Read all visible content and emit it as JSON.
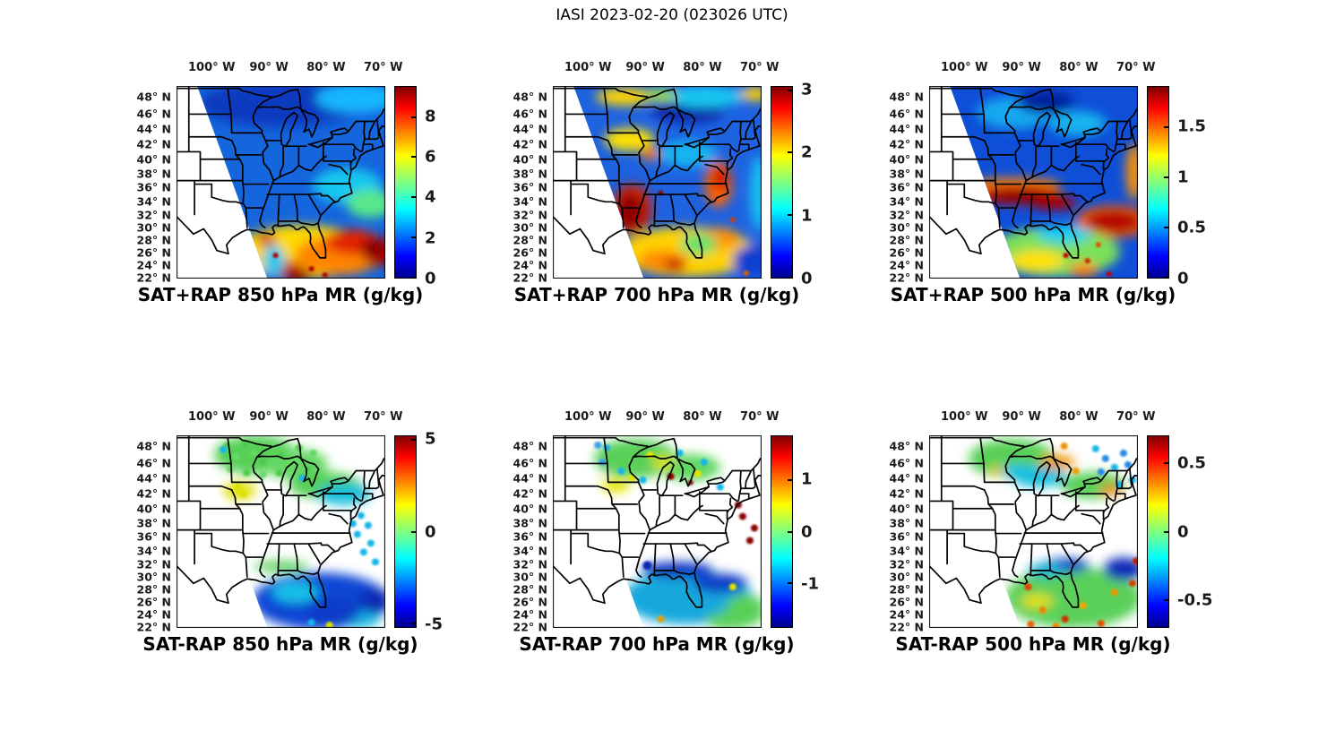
{
  "figure_title": "IASI 2023-02-20 (023026 UTC)",
  "instrument": "IASI",
  "date": "2023-02-20",
  "time_utc": "023026",
  "chart_data": [
    {
      "type": "heatmap",
      "id": "sat-plus-rap-850",
      "title": "SAT+RAP 850 hPa MR (g/kg)",
      "quantity": "SAT+RAP mixing ratio",
      "pressure_level_hPa": 850,
      "units": "g/kg",
      "x_axis": {
        "label": "longitude",
        "tick_labels": [
          "100° W",
          "90° W",
          "80° W",
          "70° W"
        ],
        "tick_values_deg_east": [
          -100,
          -90,
          -80,
          -70
        ]
      },
      "y_axis": {
        "label": "latitude",
        "tick_labels": [
          "48° N",
          "46° N",
          "44° N",
          "42° N",
          "40° N",
          "38° N",
          "36° N",
          "34° N",
          "32° N",
          "30° N",
          "28° N",
          "26° N",
          "24° N",
          "22° N"
        ],
        "tick_values_deg_north": [
          48,
          46,
          44,
          42,
          40,
          38,
          36,
          34,
          32,
          30,
          28,
          26,
          24,
          22
        ]
      },
      "colorbar": {
        "colormap": "jet",
        "vmin": 0,
        "vmax": 9.5,
        "tick_values": [
          0,
          2,
          4,
          6,
          8
        ],
        "tick_labels": [
          "0",
          "2",
          "4",
          "6",
          "8"
        ]
      },
      "coverage": "IASI swath east of edge running ~102.5°W at 49°N to ~90.3°W at 22°N; white = no data (Texas, central Plains)",
      "regions": [
        {
          "area": "Upper Midwest / Great Lakes (40-49N)",
          "value_g_per_kg": "1-3 (blue)"
        },
        {
          "area": "Ohio Valley and Mid-Atlantic",
          "value_g_per_kg": "2-4 (blue-cyan)"
        },
        {
          "area": "Southeast coast and Florida",
          "value_g_per_kg": "4-7 (green-orange)"
        },
        {
          "area": "Gulf of Mexico and subtropical Atlantic (22-30N)",
          "value_g_per_kg": "6-9.5 (red, dark-red maxima)"
        }
      ]
    },
    {
      "type": "heatmap",
      "id": "sat-plus-rap-700",
      "title": "SAT+RAP 700 hPa MR (g/kg)",
      "quantity": "SAT+RAP mixing ratio",
      "pressure_level_hPa": 700,
      "units": "g/kg",
      "x_axis": {
        "label": "longitude",
        "tick_labels": [
          "100° W",
          "90° W",
          "80° W",
          "70° W"
        ],
        "tick_values_deg_east": [
          -100,
          -90,
          -80,
          -70
        ]
      },
      "y_axis": {
        "label": "latitude",
        "tick_labels": [
          "48° N",
          "46° N",
          "44° N",
          "42° N",
          "40° N",
          "38° N",
          "36° N",
          "34° N",
          "32° N",
          "30° N",
          "28° N",
          "26° N",
          "24° N",
          "22° N"
        ],
        "tick_values_deg_north": [
          48,
          46,
          44,
          42,
          40,
          38,
          36,
          34,
          32,
          30,
          28,
          26,
          24,
          22
        ]
      },
      "colorbar": {
        "colormap": "jet",
        "vmin": 0,
        "vmax": 3.05,
        "tick_values": [
          0,
          1,
          2,
          3
        ],
        "tick_labels": [
          "0",
          "1",
          "2",
          "3"
        ]
      },
      "coverage": "IASI swath east of edge running ~102.5°W at 49°N to ~90.3°W at 22°N; white = no data",
      "regions": [
        {
          "area": "Northern tier (44-49N)",
          "value_g_per_kg": "0.5-2 blue/cyan with yellow patches"
        },
        {
          "area": "Iowa-Illinois band",
          "value_g_per_kg": "~2 (yellow)"
        },
        {
          "area": "NE Texas / NW Louisiana (31-34N, 92-95W)",
          "value_g_per_kg": "~3 dark-red maximum"
        },
        {
          "area": "Carolina coast",
          "value_g_per_kg": "~2.5 (orange-red)"
        },
        {
          "area": "Gulf of Mexico and Florida",
          "value_g_per_kg": "1.5-2.5 yellow/orange"
        },
        {
          "area": "SE corner Atlantic",
          "value_g_per_kg": "~0.3 deep blue patch"
        }
      ]
    },
    {
      "type": "heatmap",
      "id": "sat-plus-rap-500",
      "title": "SAT+RAP 500 hPa MR (g/kg)",
      "quantity": "SAT+RAP mixing ratio",
      "pressure_level_hPa": 500,
      "units": "g/kg",
      "x_axis": {
        "label": "longitude",
        "tick_labels": [
          "100° W",
          "90° W",
          "80° W",
          "70° W"
        ],
        "tick_values_deg_east": [
          -100,
          -90,
          -80,
          -70
        ]
      },
      "y_axis": {
        "label": "latitude",
        "tick_labels": [
          "48° N",
          "46° N",
          "44° N",
          "42° N",
          "40° N",
          "38° N",
          "36° N",
          "34° N",
          "32° N",
          "30° N",
          "28° N",
          "26° N",
          "24° N",
          "22° N"
        ],
        "tick_values_deg_north": [
          48,
          46,
          44,
          42,
          40,
          38,
          36,
          34,
          32,
          30,
          28,
          26,
          24,
          22
        ]
      },
      "colorbar": {
        "colormap": "jet",
        "vmin": 0,
        "vmax": 1.9,
        "tick_values": [
          0,
          0.5,
          1,
          1.5
        ],
        "tick_labels": [
          "0",
          "0.5",
          "1",
          "1.5"
        ]
      },
      "coverage": "IASI swath east of edge running ~102.5°W at 49°N to ~90.3°W at 22°N; white = no data",
      "regions": [
        {
          "area": "Northern tier",
          "value_g_per_kg": "0.1-0.6 blue with cyan mottling"
        },
        {
          "area": "34-36N band from Oklahoma to Georgia",
          "value_g_per_kg": "~1.9 dark-red maximum"
        },
        {
          "area": "Western Atlantic 29-32N",
          "value_g_per_kg": "1.5-1.9 red band"
        },
        {
          "area": "Gulf of Mexico and Florida",
          "value_g_per_kg": "0.7-1.2 green/yellow, scattered red"
        },
        {
          "area": "Right edge near 70W, 36-40N",
          "value_g_per_kg": "~1.4 orange streak"
        }
      ]
    },
    {
      "type": "heatmap",
      "id": "sat-minus-rap-850",
      "title": "SAT-RAP 850 hPa MR (g/kg)",
      "quantity": "SAT-RAP mixing ratio difference",
      "pressure_level_hPa": 850,
      "units": "g/kg",
      "x_axis": {
        "label": "longitude",
        "tick_labels": [
          "100° W",
          "90° W",
          "80° W",
          "70° W"
        ],
        "tick_values_deg_east": [
          -100,
          -90,
          -80,
          -70
        ]
      },
      "y_axis": {
        "label": "latitude",
        "tick_labels": [
          "48° N",
          "46° N",
          "44° N",
          "42° N",
          "40° N",
          "38° N",
          "36° N",
          "34° N",
          "32° N",
          "30° N",
          "28° N",
          "26° N",
          "24° N",
          "22° N"
        ],
        "tick_values_deg_north": [
          48,
          46,
          44,
          42,
          40,
          38,
          36,
          34,
          32,
          30,
          28,
          26,
          24,
          22
        ]
      },
      "colorbar": {
        "colormap": "jet",
        "vmin": -5.2,
        "vmax": 5.2,
        "tick_values": [
          -5,
          0,
          5
        ],
        "tick_labels": [
          "-5",
          "0",
          "5"
        ]
      },
      "coverage": "sparse retrievals: scattered dots in north, contiguous field over Gulf/SE Atlantic; white = no data",
      "regions": [
        {
          "area": "Minnesota / Wisconsin / Dakotas dots",
          "value_g_per_kg": "0 to +0.5 (green)"
        },
        {
          "area": "Iowa-Nebraska patch",
          "value_g_per_kg": "+1 to +1.5 (yellow)"
        },
        {
          "area": "Ohio to Mid-Atlantic dots",
          "value_g_per_kg": "-0.5 to -1 (cyan)"
        },
        {
          "area": "Gulf of Mexico, Florida, SW Atlantic",
          "value_g_per_kg": "-2 to -4.5 (blue)"
        }
      ]
    },
    {
      "type": "heatmap",
      "id": "sat-minus-rap-700",
      "title": "SAT-RAP 700 hPa MR (g/kg)",
      "quantity": "SAT-RAP mixing ratio difference",
      "pressure_level_hPa": 700,
      "units": "g/kg",
      "x_axis": {
        "label": "longitude",
        "tick_labels": [
          "100° W",
          "90° W",
          "80° W",
          "70° W"
        ],
        "tick_values_deg_east": [
          -100,
          -90,
          -80,
          -70
        ]
      },
      "y_axis": {
        "label": "latitude",
        "tick_labels": [
          "48° N",
          "46° N",
          "44° N",
          "42° N",
          "40° N",
          "38° N",
          "36° N",
          "34° N",
          "32° N",
          "30° N",
          "28° N",
          "26° N",
          "24° N",
          "22° N"
        ],
        "tick_values_deg_north": [
          48,
          46,
          44,
          42,
          40,
          38,
          36,
          34,
          32,
          30,
          28,
          26,
          24,
          22
        ]
      },
      "colorbar": {
        "colormap": "jet",
        "vmin": -1.85,
        "vmax": 1.85,
        "tick_values": [
          -1,
          0,
          1
        ],
        "tick_labels": [
          "-1",
          "0",
          "1"
        ]
      },
      "coverage": "scattered dots in north, field over Gulf/SE; white = no data",
      "regions": [
        {
          "area": "Northern dots",
          "value_g_per_kg": "±0.3 green, few yellow +0.7"
        },
        {
          "area": "Isolated dots (Michigan, offshore New Jersey)",
          "value_g_per_kg": "+1.5 to +1.8 dark red"
        },
        {
          "area": "Inland 30-33N Louisiana to Georgia",
          "value_g_per_kg": "-1 to -1.5 dark blue"
        },
        {
          "area": "Gulf of Mexico",
          "value_g_per_kg": "-0.3 to -0.7 cyan"
        },
        {
          "area": "Lower-right Atlantic",
          "value_g_per_kg": "~0 green"
        }
      ]
    },
    {
      "type": "heatmap",
      "id": "sat-minus-rap-500",
      "title": "SAT-RAP 500 hPa MR (g/kg)",
      "quantity": "SAT-RAP mixing ratio difference",
      "pressure_level_hPa": 500,
      "units": "g/kg",
      "x_axis": {
        "label": "longitude",
        "tick_labels": [
          "100° W",
          "90° W",
          "80° W",
          "70° W"
        ],
        "tick_values_deg_east": [
          -100,
          -90,
          -80,
          -70
        ]
      },
      "y_axis": {
        "label": "latitude",
        "tick_labels": [
          "48° N",
          "46° N",
          "44° N",
          "42° N",
          "40° N",
          "38° N",
          "36° N",
          "34° N",
          "32° N",
          "30° N",
          "28° N",
          "26° N",
          "24° N",
          "22° N"
        ],
        "tick_values_deg_north": [
          48,
          46,
          44,
          42,
          40,
          38,
          36,
          34,
          32,
          30,
          28,
          26,
          24,
          22
        ]
      },
      "colorbar": {
        "colormap": "jet",
        "vmin": -0.7,
        "vmax": 0.7,
        "tick_values": [
          -0.5,
          0,
          0.5
        ],
        "tick_labels": [
          "-0.5",
          "0",
          "0.5"
        ]
      },
      "coverage": "mottled field over most of swath; white gaps in NE and upper-left wedge",
      "regions": [
        {
          "area": "Northern tier mottled field",
          "value_g_per_kg": "±0.3 green/cyan with +0.4 orange patches"
        },
        {
          "area": "New York / New England dots",
          "value_g_per_kg": "-0.2 to -0.5 cyan/blue"
        },
        {
          "area": "SW Atlantic 30-33N and Alabama/Georgia",
          "value_g_per_kg": "-0.6 to -0.7 dark blue"
        },
        {
          "area": "Gulf, Florida, SE Atlantic speckles",
          "value_g_per_kg": "+0.4 to +0.7 orange/red"
        }
      ]
    }
  ]
}
